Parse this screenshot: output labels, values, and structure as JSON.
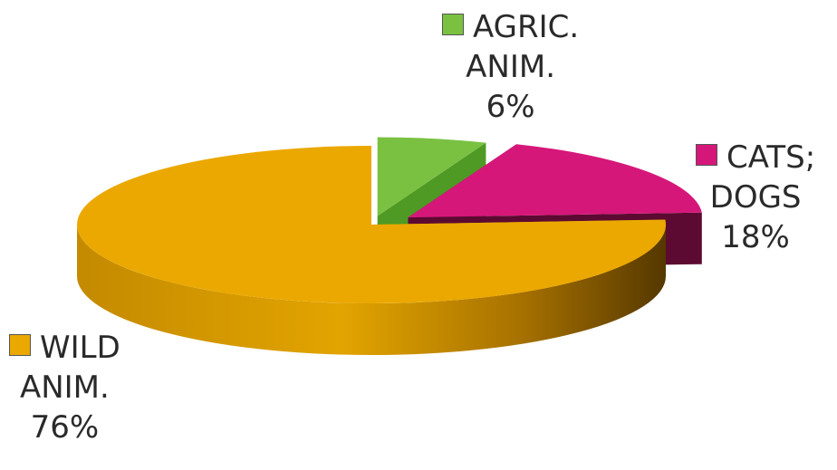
{
  "chart_data": {
    "type": "pie",
    "style": "3d-exploded",
    "categories": [
      "AGRIC. ANIM.",
      "CATS; DOGS",
      "WILD ANIM."
    ],
    "values": [
      6,
      18,
      76
    ],
    "unit": "%",
    "legend_entries": [
      {
        "lines": [
          "AGRIC.",
          "ANIM."
        ],
        "value_label": "6%",
        "color": "#7ac142"
      },
      {
        "lines": [
          "CATS;",
          "DOGS"
        ],
        "value_label": "18%",
        "color": "#d6177a"
      },
      {
        "lines": [
          "WILD",
          "ANIM."
        ],
        "value_label": "76%",
        "color": "#eba800"
      }
    ],
    "legend_placement": "beside-slices"
  }
}
